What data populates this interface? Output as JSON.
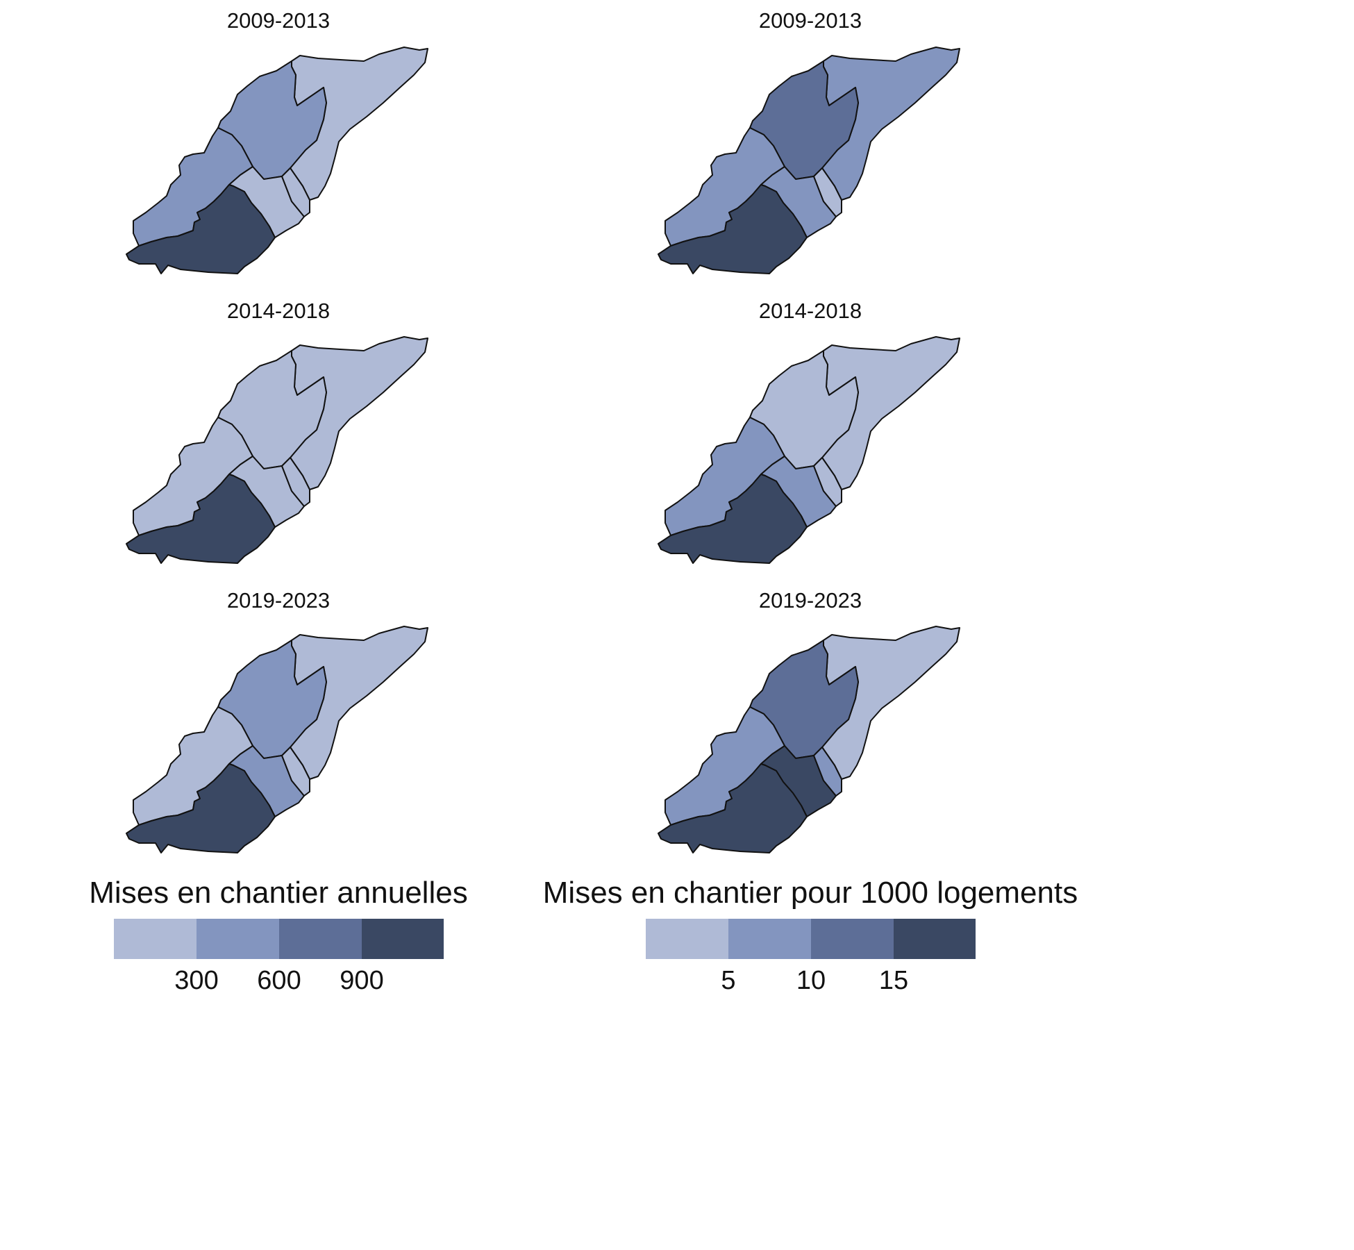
{
  "colors": {
    "class1": "#afbad6",
    "class2": "#8395bf",
    "class3": "#5d6e97",
    "class4": "#3a4863"
  },
  "district_ids": [
    "north",
    "north_center",
    "west",
    "south_center",
    "east_small",
    "southwest"
  ],
  "panels": [
    {
      "title": "2009-2013",
      "fills": {
        "north": 1,
        "north_center": 2,
        "west": 2,
        "south_center": 1,
        "east_small": 1,
        "southwest": 4
      }
    },
    {
      "title": "2009-2013",
      "fills": {
        "north": 2,
        "north_center": 3,
        "west": 2,
        "south_center": 2,
        "east_small": 1,
        "southwest": 4
      }
    },
    {
      "title": "2014-2018",
      "fills": {
        "north": 1,
        "north_center": 1,
        "west": 1,
        "south_center": 1,
        "east_small": 1,
        "southwest": 4
      }
    },
    {
      "title": "2014-2018",
      "fills": {
        "north": 1,
        "north_center": 1,
        "west": 2,
        "south_center": 2,
        "east_small": 1,
        "southwest": 4
      }
    },
    {
      "title": "2019-2023",
      "fills": {
        "north": 1,
        "north_center": 2,
        "west": 1,
        "south_center": 2,
        "east_small": 1,
        "southwest": 4
      }
    },
    {
      "title": "2019-2023",
      "fills": {
        "north": 1,
        "north_center": 3,
        "west": 2,
        "south_center": 4,
        "east_small": 2,
        "southwest": 4
      }
    }
  ],
  "legends": [
    {
      "title": "Mises en chantier annuelles",
      "breaks": [
        "300",
        "600",
        "900"
      ]
    },
    {
      "title": "Mises en chantier pour 1000 logements",
      "breaks": [
        "5",
        "10",
        "15"
      ]
    }
  ]
}
